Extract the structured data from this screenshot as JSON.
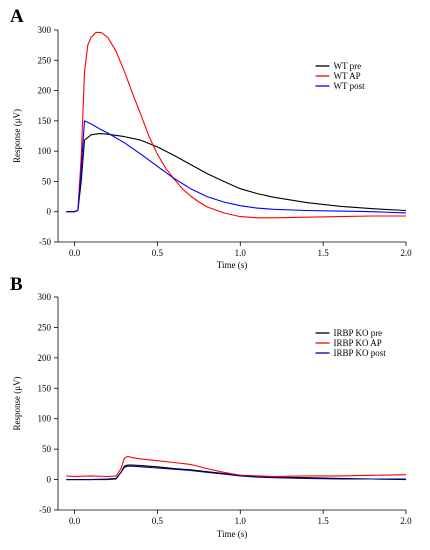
{
  "chart_data": [
    {
      "panel": "A",
      "type": "line",
      "xlabel": "Time (s)",
      "ylabel": "Response (μV)",
      "xlim": [
        -0.1,
        2.0
      ],
      "ylim": [
        -50,
        300
      ],
      "xticks": [
        "0.0",
        "0.5",
        "1.0",
        "1.5",
        "2.0"
      ],
      "xtick_values": [
        0.0,
        0.5,
        1.0,
        1.5,
        2.0
      ],
      "yticks": [
        "-50",
        "0",
        "50",
        "100",
        "150",
        "200",
        "250",
        "300"
      ],
      "ytick_values": [
        -50,
        0,
        50,
        100,
        150,
        200,
        250,
        300
      ],
      "grid": false,
      "legend_position": "right",
      "series": [
        {
          "name": "WT pre",
          "color": "#000000",
          "x": [
            -0.05,
            0.0,
            0.02,
            0.04,
            0.06,
            0.1,
            0.15,
            0.2,
            0.3,
            0.4,
            0.5,
            0.6,
            0.7,
            0.8,
            0.9,
            1.0,
            1.1,
            1.2,
            1.4,
            1.6,
            1.8,
            2.0
          ],
          "y": [
            0,
            0,
            2,
            50,
            118,
            127,
            129,
            128,
            124,
            118,
            107,
            93,
            78,
            63,
            50,
            38,
            30,
            24,
            15,
            9,
            5,
            2
          ]
        },
        {
          "name": "WT AP",
          "color": "#ff0000",
          "x": [
            -0.05,
            0.0,
            0.02,
            0.04,
            0.06,
            0.08,
            0.1,
            0.13,
            0.16,
            0.2,
            0.25,
            0.3,
            0.35,
            0.4,
            0.45,
            0.5,
            0.55,
            0.6,
            0.65,
            0.7,
            0.75,
            0.8,
            0.9,
            1.0,
            1.1,
            1.2,
            1.4,
            1.6,
            1.8,
            2.0
          ],
          "y": [
            0,
            0,
            3,
            90,
            230,
            275,
            288,
            296,
            296,
            288,
            265,
            232,
            195,
            160,
            124,
            95,
            72,
            54,
            38,
            26,
            16,
            8,
            -2,
            -8,
            -10,
            -10,
            -9,
            -8,
            -7,
            -7
          ]
        },
        {
          "name": "WT post",
          "color": "#0000ff",
          "x": [
            -0.05,
            0.0,
            0.02,
            0.04,
            0.06,
            0.1,
            0.15,
            0.2,
            0.3,
            0.4,
            0.5,
            0.6,
            0.7,
            0.8,
            0.9,
            1.0,
            1.1,
            1.2,
            1.4,
            1.6,
            1.8,
            2.0
          ],
          "y": [
            0,
            0,
            2,
            70,
            150,
            145,
            137,
            130,
            114,
            95,
            75,
            55,
            38,
            25,
            16,
            10,
            6,
            4,
            2,
            1,
            0,
            -2
          ]
        }
      ]
    },
    {
      "panel": "B",
      "type": "line",
      "xlabel": "Time (s)",
      "ylabel": "Response (μV)",
      "xlim": [
        -0.1,
        2.0
      ],
      "ylim": [
        -50,
        300
      ],
      "xticks": [
        "0.0",
        "0.5",
        "1.0",
        "1.5",
        "2.0"
      ],
      "xtick_values": [
        0.0,
        0.5,
        1.0,
        1.5,
        2.0
      ],
      "yticks": [
        "-50",
        "0",
        "50",
        "100",
        "150",
        "200",
        "250",
        "300"
      ],
      "ytick_values": [
        -50,
        0,
        50,
        100,
        150,
        200,
        250,
        300
      ],
      "grid": false,
      "legend_position": "right",
      "series": [
        {
          "name": "IRBP KO pre",
          "color": "#000000",
          "x": [
            -0.05,
            0.0,
            0.1,
            0.2,
            0.25,
            0.28,
            0.3,
            0.32,
            0.35,
            0.4,
            0.5,
            0.6,
            0.7,
            0.8,
            0.9,
            1.0,
            1.1,
            1.2,
            1.4,
            1.6,
            1.8,
            2.0
          ],
          "y": [
            0,
            0,
            0,
            1,
            2,
            12,
            22,
            24,
            24,
            23,
            21,
            18,
            16,
            13,
            10,
            7,
            5,
            4,
            3,
            2,
            1,
            1
          ]
        },
        {
          "name": "IRBP KO AP",
          "color": "#ff0000",
          "x": [
            -0.05,
            0.0,
            0.1,
            0.2,
            0.25,
            0.28,
            0.3,
            0.32,
            0.35,
            0.4,
            0.5,
            0.6,
            0.7,
            0.8,
            0.9,
            1.0,
            1.1,
            1.2,
            1.4,
            1.6,
            1.8,
            2.0
          ],
          "y": [
            6,
            5,
            6,
            5,
            6,
            18,
            35,
            38,
            36,
            34,
            31,
            28,
            25,
            18,
            12,
            7,
            6,
            5,
            6,
            6,
            7,
            8
          ]
        },
        {
          "name": "IRBP KO post",
          "color": "#00008b",
          "x": [
            -0.05,
            0.0,
            0.1,
            0.2,
            0.25,
            0.28,
            0.3,
            0.32,
            0.35,
            0.4,
            0.5,
            0.6,
            0.7,
            0.8,
            0.9,
            1.0,
            1.1,
            1.2,
            1.4,
            1.6,
            1.8,
            2.0
          ],
          "y": [
            0,
            0,
            0,
            0,
            1,
            12,
            20,
            22,
            22,
            21,
            19,
            17,
            15,
            12,
            9,
            6,
            4,
            3,
            2,
            1,
            1,
            0
          ]
        }
      ]
    }
  ]
}
